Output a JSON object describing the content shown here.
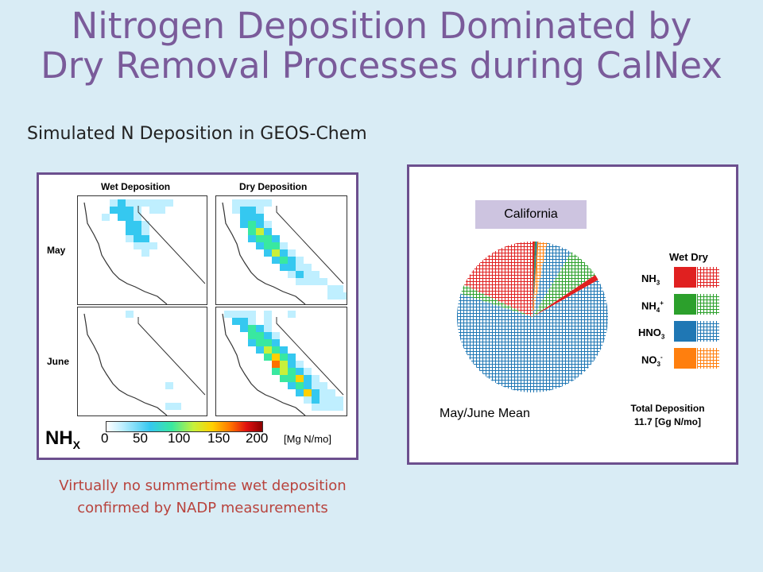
{
  "slide": {
    "title_line1": "Nitrogen Deposition Dominated by",
    "title_line2": "Dry Removal Processes during CalNex",
    "subtitle": "Simulated N Deposition in GEOS-Chem",
    "caption_line1": "Virtually no summertime wet deposition",
    "caption_line2": "confirmed by NADP measurements"
  },
  "map_panel": {
    "col_wet": "Wet Deposition",
    "col_dry": "Dry Deposition",
    "row_may": "May",
    "row_june": "June",
    "species": "NH",
    "species_sub": "X",
    "colorbar_ticks": [
      "0",
      "50",
      "100",
      "150",
      "200"
    ],
    "colorbar_unit": "[Mg N/mo]",
    "colorbar_range": [
      0,
      200
    ]
  },
  "chart_data": {
    "type": "pie",
    "title": "California",
    "subtitle": "May/June Mean",
    "legend_header": "Wet Dry",
    "legend": [
      {
        "name": "NH",
        "sub": "3",
        "sup": "",
        "color": "#e02020"
      },
      {
        "name": "NH",
        "sub": "4",
        "sup": "+",
        "color": "#2ca02c"
      },
      {
        "name": "HNO",
        "sub": "3",
        "sup": "",
        "color": "#1f77b4"
      },
      {
        "name": "NO",
        "sub": "3",
        "sup": "-",
        "color": "#ff7f0e"
      }
    ],
    "total_line1": "Total Deposition",
    "total_line2": "11.7 [Gg N/mo]",
    "slices": [
      {
        "species": "NH3",
        "kind": "wet",
        "value": 0.5,
        "color": "#e02020"
      },
      {
        "species": "NH4+",
        "kind": "wet",
        "value": 0.2,
        "color": "#2ca02c"
      },
      {
        "species": "HNO3",
        "kind": "wet",
        "value": 0.3,
        "color": "#1f77b4"
      },
      {
        "species": "NO3-",
        "kind": "wet",
        "value": 0.3,
        "color": "#ff7f0e"
      },
      {
        "species": "NO3-",
        "kind": "dry",
        "value": 1.8,
        "color": "#ff7f0e"
      },
      {
        "species": "HNO3",
        "kind": "dry",
        "value": 5.5,
        "color": "#1f77b4"
      },
      {
        "species": "NH4+",
        "kind": "dry",
        "value": 7.0,
        "color": "#2ca02c"
      },
      {
        "species": "NH3",
        "kind": "wet",
        "value": 1.2,
        "color": "#e02020"
      },
      {
        "species": "HNO3",
        "kind": "dry",
        "value": 63.2,
        "color": "#1f77b4"
      },
      {
        "species": "NH4+",
        "kind": "dry",
        "value": 2.0,
        "color": "#2ca02c"
      },
      {
        "species": "NH3",
        "kind": "dry",
        "value": 18.0,
        "color": "#e02020"
      }
    ]
  }
}
